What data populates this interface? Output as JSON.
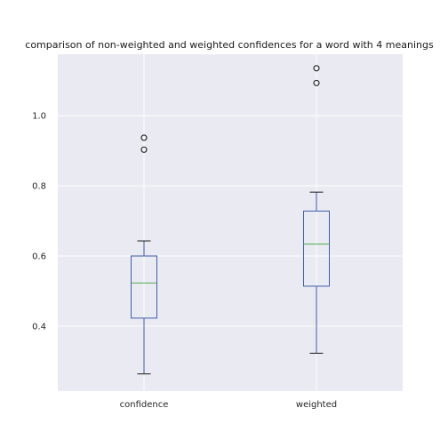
{
  "chart_data": {
    "type": "box",
    "title": "comparison of non-weighted and weighted confidences for a word with 4 meanings",
    "xlabel": "",
    "ylabel": "",
    "ylim": [
      0.215,
      1.175
    ],
    "yticks": [
      0.4,
      0.6,
      0.8,
      1.0
    ],
    "ytick_labels": [
      "0.4",
      "0.6",
      "0.8",
      "1.0"
    ],
    "grid": true,
    "categories": [
      "confidence",
      "weighted"
    ],
    "boxes": [
      {
        "label": "confidence",
        "whisker_low": 0.264,
        "q1": 0.423,
        "median": 0.523,
        "q3": 0.6,
        "whisker_high": 0.643,
        "outliers": [
          0.903,
          0.937
        ]
      },
      {
        "label": "weighted",
        "whisker_low": 0.323,
        "q1": 0.514,
        "median": 0.634,
        "q3": 0.728,
        "whisker_high": 0.782,
        "outliers": [
          1.093,
          1.135
        ]
      }
    ],
    "colors": {
      "background": "#eaeaf2",
      "grid": "#ffffff",
      "box": "#3f5fa8",
      "median": "#4caf50",
      "whisker_cap": "#1a1a1a",
      "outlier": "#1a1a1a"
    }
  }
}
